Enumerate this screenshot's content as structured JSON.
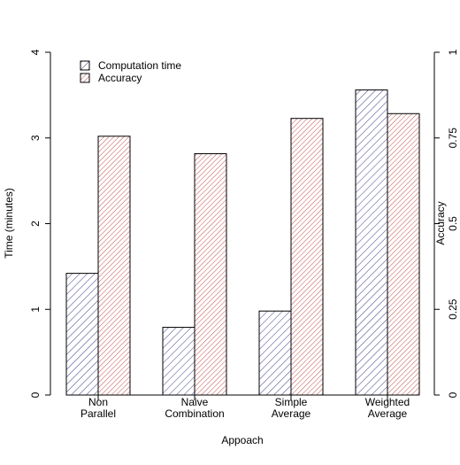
{
  "chart_data": {
    "type": "bar",
    "xlabel": "Appoach",
    "categories": [
      [
        "Non",
        "Parallel"
      ],
      [
        "Naive",
        "Combination"
      ],
      [
        "Simple",
        "Average"
      ],
      [
        "Weighted",
        "Average"
      ]
    ],
    "series": [
      {
        "name": "Computation time",
        "axis": "left",
        "color": "#3d3d8c",
        "values": [
          1.42,
          0.79,
          0.98,
          3.56
        ]
      },
      {
        "name": "Accuracy",
        "axis": "right",
        "color": "#c0504d",
        "values": [
          0.755,
          0.704,
          0.807,
          0.821
        ]
      }
    ],
    "y_left": {
      "label": "Time (minutes)",
      "range": [
        0,
        4
      ],
      "ticks": [
        "0",
        "1",
        "2",
        "3",
        "4"
      ],
      "tick_values": [
        0,
        1,
        2,
        3,
        4
      ]
    },
    "y_right": {
      "label": "Accuracy",
      "range": [
        0,
        1
      ],
      "ticks": [
        "0",
        "0.25",
        "0.5",
        "0.75",
        "1"
      ],
      "tick_values": [
        0,
        0.25,
        0.5,
        0.75,
        1
      ]
    },
    "legend": {
      "position": "top-left",
      "style": "hatched"
    },
    "grid": false
  }
}
